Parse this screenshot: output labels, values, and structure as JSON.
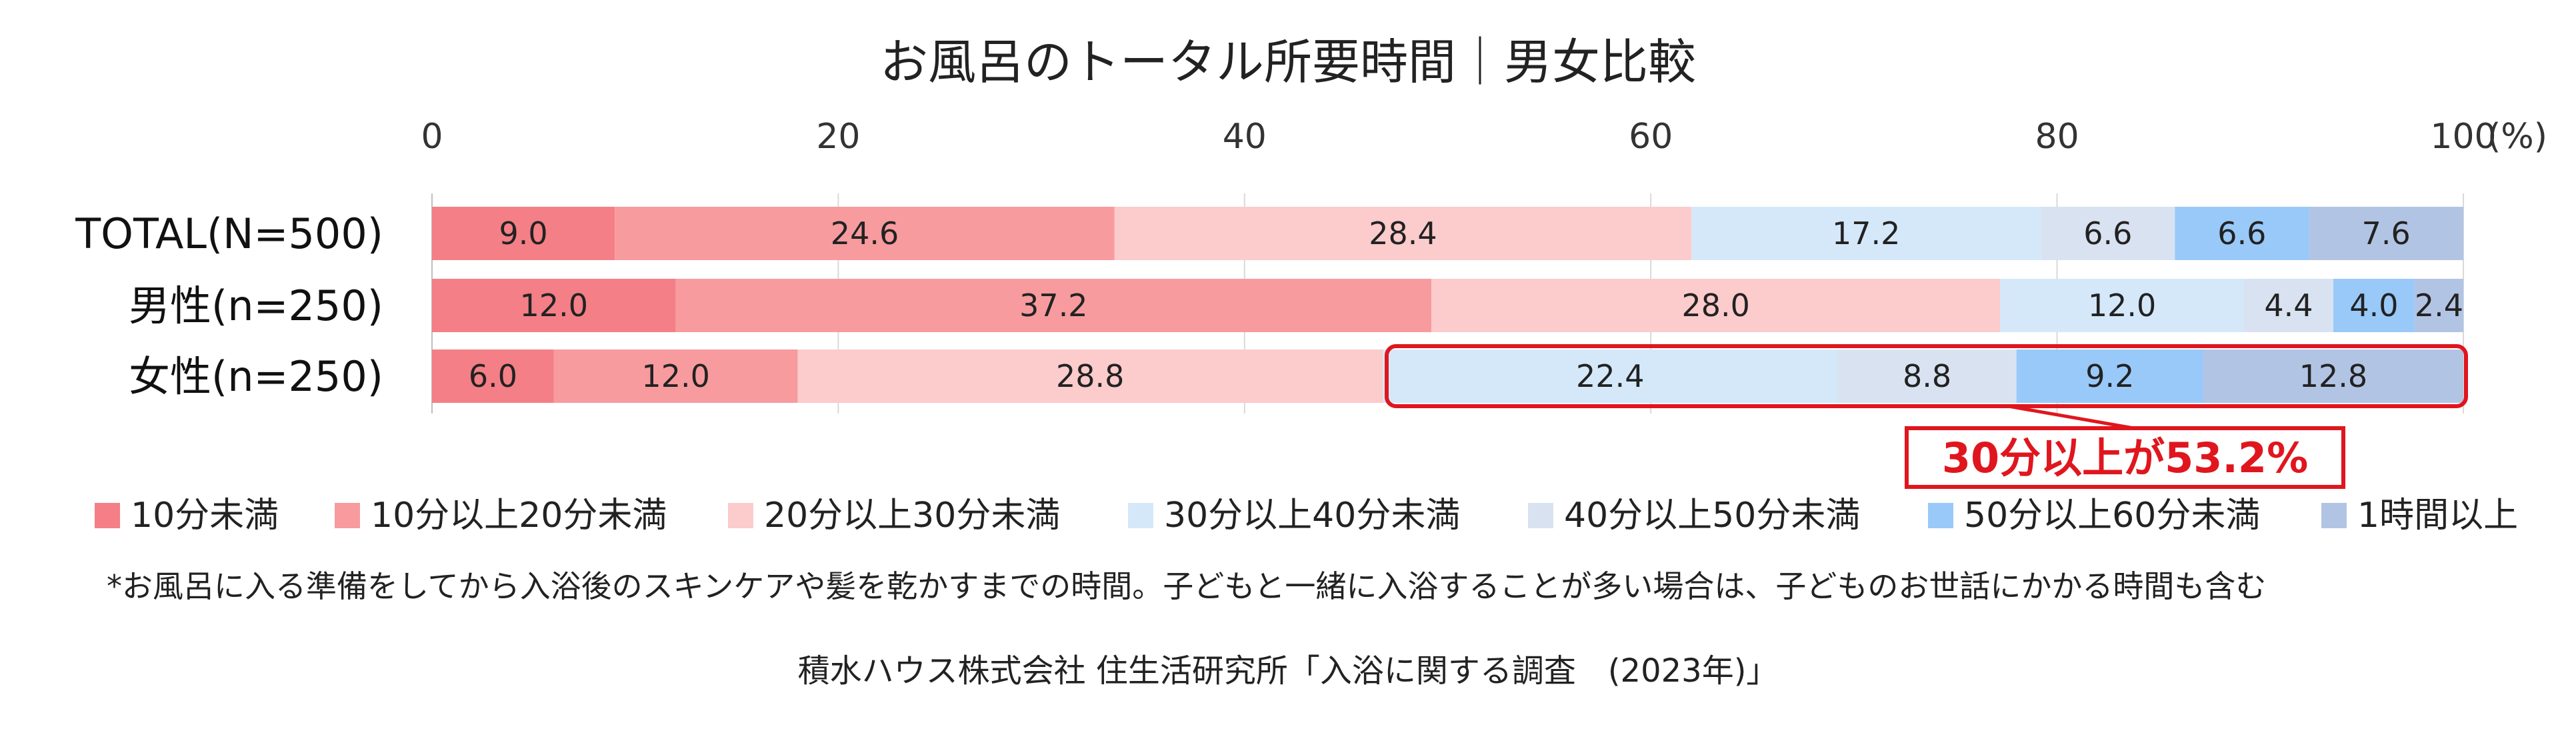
{
  "chart_data": {
    "type": "bar",
    "orientation": "horizontal",
    "stacked": true,
    "title": "お風呂のトータル所要時間｜男女比較",
    "categories": [
      "TOTAL(N=500)",
      "男性(n=250)",
      "女性(n=250)"
    ],
    "xlim": [
      0,
      100
    ],
    "x_ticks": [
      "0",
      "20",
      "40",
      "60",
      "80",
      "100"
    ],
    "x_unit": "(%)",
    "grid": true,
    "legend_position": "bottom",
    "series": [
      {
        "name": "10分未満",
        "color": "#F47F86",
        "values": [
          9.0,
          12.0,
          6.0
        ]
      },
      {
        "name": "10分以上20分未満",
        "color": "#F79B9E",
        "values": [
          24.6,
          37.2,
          12.0
        ]
      },
      {
        "name": "20分以上30分未満",
        "color": "#FCCBCC",
        "values": [
          28.4,
          28.0,
          28.8
        ]
      },
      {
        "name": "30分以上40分未満",
        "color": "#D4E8FA",
        "values": [
          17.2,
          12.0,
          22.4
        ]
      },
      {
        "name": "40分以上50分未満",
        "color": "#D9E2F0",
        "values": [
          6.6,
          4.4,
          8.8
        ]
      },
      {
        "name": "50分以上60分未満",
        "color": "#99C9F8",
        "values": [
          6.6,
          4.0,
          9.2
        ]
      },
      {
        "name": "1時間以上",
        "color": "#B2C4E4",
        "values": [
          7.6,
          2.4,
          12.8
        ]
      }
    ],
    "value_labels": [
      [
        "9.0",
        "24.6",
        "28.4",
        "17.2",
        "6.6",
        "6.6",
        "7.6"
      ],
      [
        "12.0",
        "37.2",
        "28.0",
        "12.0",
        "4.4",
        "4.0",
        "2.4"
      ],
      [
        "6.0",
        "12.0",
        "28.8",
        "22.4",
        "8.8",
        "9.2",
        "12.8"
      ]
    ],
    "callout": {
      "text": "30分以上が53.2%",
      "category": "女性(n=250)",
      "from_value": 46.8,
      "to_value": 100,
      "color": "#E0161E"
    },
    "note": "*お風呂に入る準備をしてから入浴後のスキンケアや髪を乾かすまでの時間。子どもと一緒に入浴することが多い場合は、子どものお世話にかかる時間も含む",
    "source": "積水ハウス株式会社 住生活研究所「入浴に関する調査　(2023年)」"
  }
}
